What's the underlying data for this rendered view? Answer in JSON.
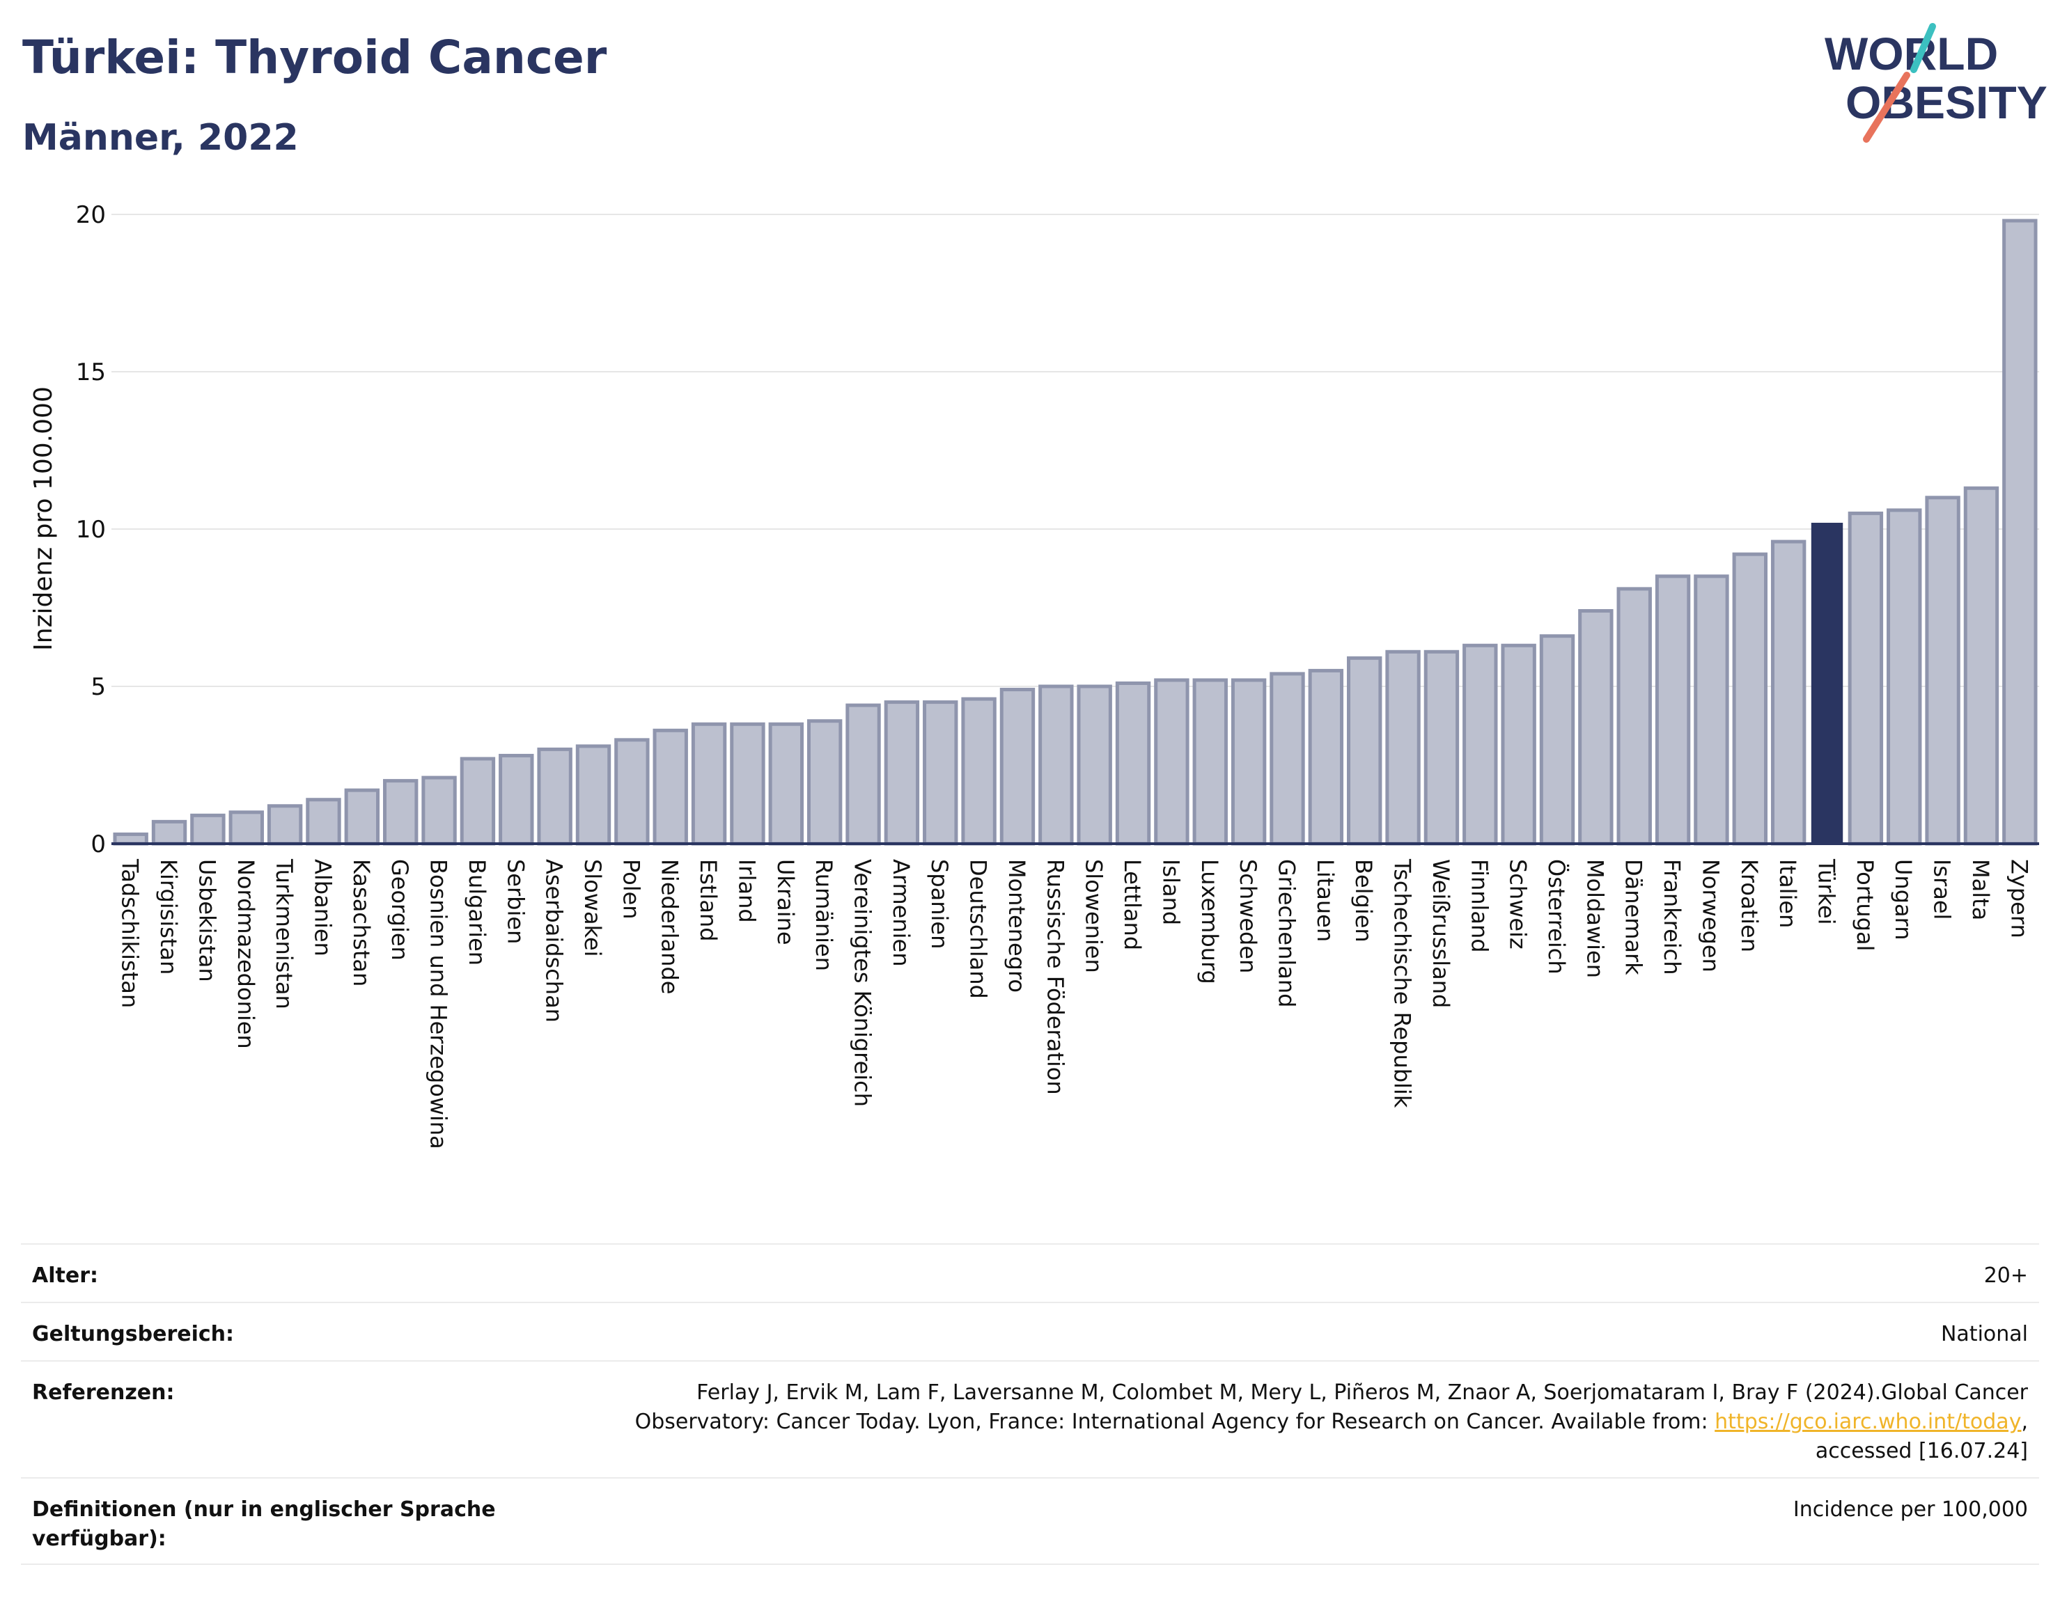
{
  "header": {
    "title": "Türkei: Thyroid Cancer",
    "subtitle": "Männer, 2022",
    "logo_line1": "WORLD",
    "logo_line2": "OBESITY"
  },
  "colors": {
    "bar": "#bcc0cf",
    "bar_stroke": "#8f95ad",
    "highlight": "#2a3561",
    "grid": "#e6e6e6",
    "axis": "#2a3561",
    "logo_teal": "#3cc0c0",
    "logo_coral": "#e8735c"
  },
  "chart_data": {
    "type": "bar",
    "ylabel": "Inzidenz pro 100.000",
    "ylim": [
      0,
      20
    ],
    "yticks": [
      0,
      5,
      10,
      15,
      20
    ],
    "grid": true,
    "highlight_category": "Türkei",
    "categories": [
      "Tadschikistan",
      "Kirgisistan",
      "Usbekistan",
      "Nordmazedonien",
      "Turkmenistan",
      "Albanien",
      "Kasachstan",
      "Georgien",
      "Bosnien und Herzegowina",
      "Bulgarien",
      "Serbien",
      "Aserbaidschan",
      "Slowakei",
      "Polen",
      "Niederlande",
      "Estland",
      "Irland",
      "Ukraine",
      "Rumänien",
      "Vereinigtes Königreich",
      "Armenien",
      "Spanien",
      "Deutschland",
      "Montenegro",
      "Russische Föderation",
      "Slowenien",
      "Lettland",
      "Island",
      "Luxemburg",
      "Schweden",
      "Griechenland",
      "Litauen",
      "Belgien",
      "Tschechische Republik",
      "Weißrussland",
      "Finnland",
      "Schweiz",
      "Österreich",
      "Moldawien",
      "Dänemark",
      "Frankreich",
      "Norwegen",
      "Kroatien",
      "Italien",
      "Türkei",
      "Portugal",
      "Ungarn",
      "Israel",
      "Malta",
      "Zypern"
    ],
    "values": [
      0.3,
      0.7,
      0.9,
      1.0,
      1.2,
      1.4,
      1.7,
      2.0,
      2.1,
      2.7,
      2.8,
      3.0,
      3.1,
      3.3,
      3.6,
      3.8,
      3.8,
      3.8,
      3.9,
      4.4,
      4.5,
      4.5,
      4.6,
      4.9,
      5.0,
      5.0,
      5.1,
      5.2,
      5.2,
      5.2,
      5.4,
      5.5,
      5.9,
      6.1,
      6.1,
      6.3,
      6.3,
      6.6,
      7.4,
      8.1,
      8.5,
      8.5,
      9.2,
      9.6,
      10.2,
      10.5,
      10.6,
      11.0,
      11.3,
      19.8
    ]
  },
  "meta": {
    "age_label": "Alter:",
    "age_value": "20+",
    "scope_label": "Geltungsbereich:",
    "scope_value": "National",
    "ref_label": "Referenzen:",
    "ref_text_1": "Ferlay J, Ervik M, Lam F, Laversanne M, Colombet M, Mery L, Piñeros M, Znaor A, Soerjomataram I, Bray F (2024).Global Cancer Observatory: Cancer Today. Lyon, France: International Agency for Research on Cancer. Available from: ",
    "ref_link": "https://gco.iarc.who.int/today",
    "ref_text_2": ", accessed [16.07.24]",
    "def_label": "Definitionen (nur in englischer Sprache verfügbar):",
    "def_value": "Incidence per 100,000"
  }
}
